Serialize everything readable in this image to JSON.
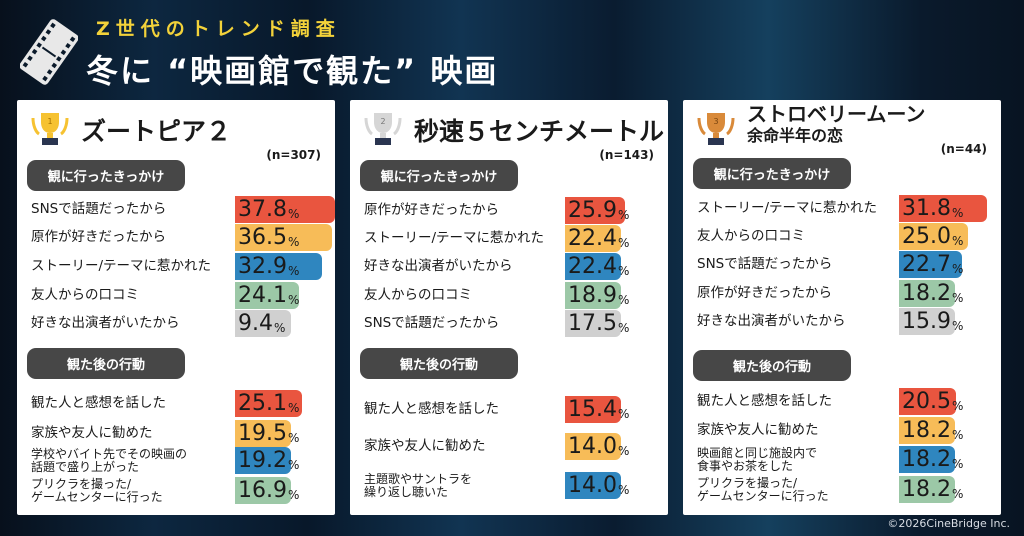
{
  "header": {
    "subtitle": "Z世代のトレンド調査",
    "title": "冬に “映画館で観た” 映画"
  },
  "colors": {
    "rank1": "#e9553f",
    "rank2": "#f7bc58",
    "rank3": "#2f86bf",
    "rank4": "#9cc8a7",
    "rank5": "#d0d0d0",
    "section_bg": "#474747",
    "subtitle": "#f3d23a"
  },
  "sections": {
    "reasons": "観に行ったきっかけ",
    "actions": "観た後の行動"
  },
  "panels": [
    {
      "rank": 1,
      "trophy": "gold-trophy-icon",
      "title": "ズートピア２",
      "title_line2": "",
      "n": "(n=307)",
      "reasons": [
        {
          "label": "SNSで話題だったから",
          "value": 37.8
        },
        {
          "label": "原作が好きだったから",
          "value": 36.5
        },
        {
          "label": "ストーリー/テーマに惹かれた",
          "value": 32.9
        },
        {
          "label": "友人からの口コミ",
          "value": 24.1
        },
        {
          "label": "好きな出演者がいたから",
          "value": 9.4
        }
      ],
      "actions": [
        {
          "label": "観た人と感想を話した",
          "value": 25.1
        },
        {
          "label": "家族や友人に勧めた",
          "value": 19.5
        },
        {
          "label": "学校やバイト先でその映画の\n話題で盛り上がった",
          "value": 19.2
        },
        {
          "label": "プリクラを撮った/\nゲームセンターに行った",
          "value": 16.9
        }
      ]
    },
    {
      "rank": 2,
      "trophy": "silver-trophy-icon",
      "title": "秒速５センチメートル",
      "title_line2": "",
      "n": "(n=143)",
      "reasons": [
        {
          "label": "原作が好きだったから",
          "value": 25.9
        },
        {
          "label": "ストーリー/テーマに惹かれた",
          "value": 22.4
        },
        {
          "label": "好きな出演者がいたから",
          "value": 22.4
        },
        {
          "label": "友人からの口コミ",
          "value": 18.9
        },
        {
          "label": "SNSで話題だったから",
          "value": 17.5
        }
      ],
      "actions": [
        {
          "label": "観た人と感想を話した",
          "value": 15.4
        },
        {
          "label": "家族や友人に勧めた",
          "value": 14.0
        },
        {
          "label": "主題歌やサントラを\n繰り返し聴いた",
          "value": 14.0
        }
      ]
    },
    {
      "rank": 3,
      "trophy": "bronze-trophy-icon",
      "title": "ストロベリームーン",
      "title_line2": "余命半年の恋",
      "n": "(n=44)",
      "reasons": [
        {
          "label": "ストーリー/テーマに惹かれた",
          "value": 31.8
        },
        {
          "label": "友人からの口コミ",
          "value": 25.0
        },
        {
          "label": "SNSで話題だったから",
          "value": 22.7
        },
        {
          "label": "原作が好きだったから",
          "value": 18.2
        },
        {
          "label": "好きな出演者がいたから",
          "value": 15.9
        }
      ],
      "actions": [
        {
          "label": "観た人と感想を話した",
          "value": 20.5
        },
        {
          "label": "家族や友人に勧めた",
          "value": 18.2
        },
        {
          "label": "映画館と同じ施設内で\n食事やお茶をした",
          "value": 18.2
        },
        {
          "label": "プリクラを撮った/\nゲームセンターに行った",
          "value": 18.2
        }
      ]
    }
  ],
  "percent_sign": "%",
  "credit": "©2026CineBridge Inc."
}
